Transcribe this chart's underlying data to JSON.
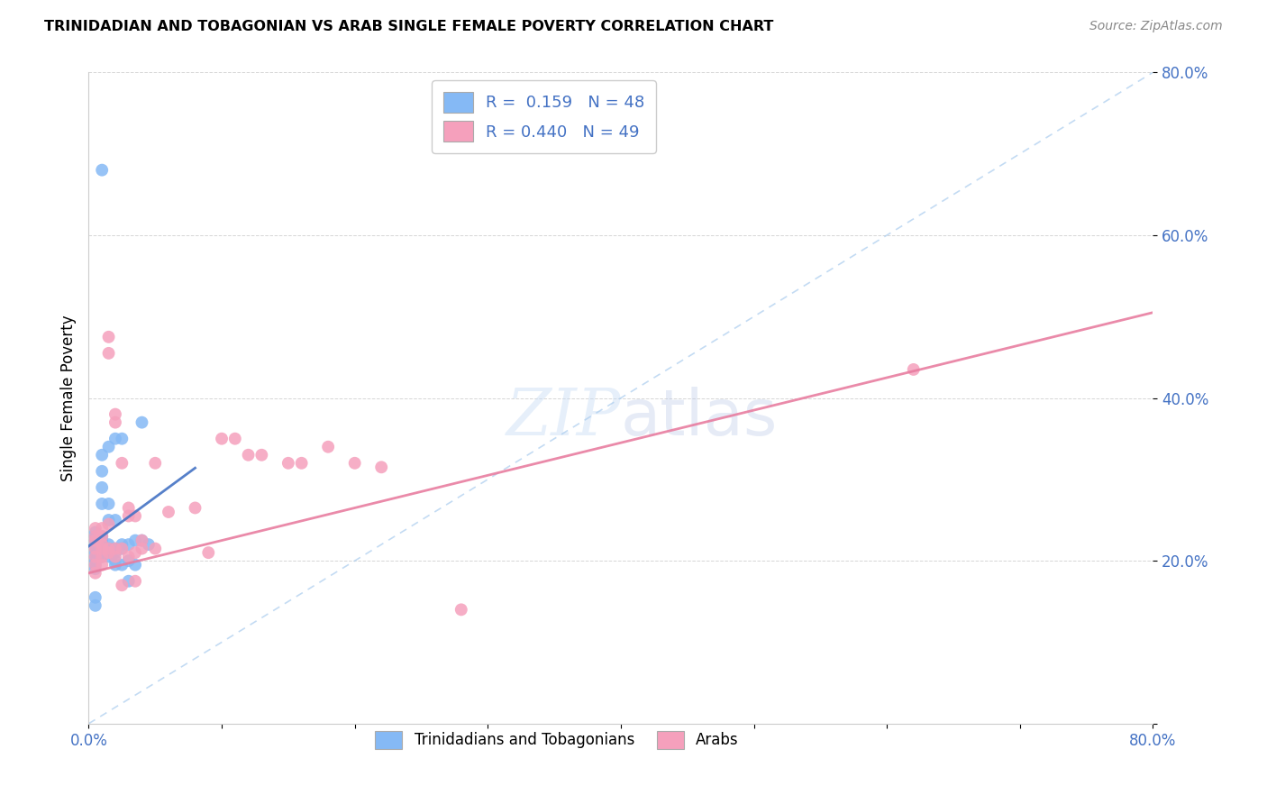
{
  "title": "TRINIDADIAN AND TOBAGONIAN VS ARAB SINGLE FEMALE POVERTY CORRELATION CHART",
  "source": "Source: ZipAtlas.com",
  "ylabel": "Single Female Poverty",
  "legend_label1": "Trinidadians and Tobagonians",
  "legend_label2": "Arabs",
  "r1": 0.159,
  "n1": 48,
  "r2": 0.44,
  "n2": 49,
  "color1": "#85b9f5",
  "color2": "#f5a0bc",
  "axis_color": "#4472c4",
  "xlim": [
    0.0,
    0.8
  ],
  "ylim": [
    0.0,
    0.8
  ],
  "background_color": "#ffffff",
  "scatter1_x": [
    0.005,
    0.005,
    0.005,
    0.005,
    0.005,
    0.005,
    0.005,
    0.005,
    0.005,
    0.005,
    0.01,
    0.01,
    0.01,
    0.01,
    0.01,
    0.01,
    0.01,
    0.01,
    0.01,
    0.01,
    0.015,
    0.015,
    0.015,
    0.015,
    0.015,
    0.015,
    0.015,
    0.02,
    0.02,
    0.02,
    0.02,
    0.02,
    0.02,
    0.025,
    0.025,
    0.025,
    0.025,
    0.03,
    0.03,
    0.03,
    0.035,
    0.035,
    0.04,
    0.04,
    0.045,
    0.01,
    0.005,
    0.005
  ],
  "scatter1_y": [
    0.215,
    0.22,
    0.225,
    0.23,
    0.235,
    0.21,
    0.205,
    0.2,
    0.195,
    0.19,
    0.22,
    0.225,
    0.23,
    0.215,
    0.21,
    0.205,
    0.27,
    0.29,
    0.31,
    0.33,
    0.22,
    0.215,
    0.21,
    0.205,
    0.25,
    0.27,
    0.34,
    0.215,
    0.21,
    0.2,
    0.195,
    0.25,
    0.35,
    0.22,
    0.215,
    0.195,
    0.35,
    0.22,
    0.2,
    0.175,
    0.225,
    0.195,
    0.37,
    0.225,
    0.22,
    0.68,
    0.155,
    0.145
  ],
  "scatter2_x": [
    0.005,
    0.005,
    0.005,
    0.005,
    0.005,
    0.005,
    0.005,
    0.01,
    0.01,
    0.01,
    0.01,
    0.01,
    0.01,
    0.015,
    0.015,
    0.015,
    0.015,
    0.015,
    0.02,
    0.02,
    0.02,
    0.02,
    0.025,
    0.025,
    0.025,
    0.03,
    0.03,
    0.03,
    0.035,
    0.035,
    0.035,
    0.04,
    0.04,
    0.05,
    0.05,
    0.06,
    0.08,
    0.09,
    0.1,
    0.11,
    0.12,
    0.13,
    0.15,
    0.16,
    0.18,
    0.2,
    0.22,
    0.28,
    0.62
  ],
  "scatter2_y": [
    0.225,
    0.215,
    0.205,
    0.195,
    0.185,
    0.23,
    0.24,
    0.22,
    0.215,
    0.205,
    0.195,
    0.23,
    0.24,
    0.215,
    0.21,
    0.245,
    0.455,
    0.475,
    0.37,
    0.38,
    0.215,
    0.205,
    0.32,
    0.215,
    0.17,
    0.265,
    0.255,
    0.205,
    0.255,
    0.21,
    0.175,
    0.225,
    0.215,
    0.32,
    0.215,
    0.26,
    0.265,
    0.21,
    0.35,
    0.35,
    0.33,
    0.33,
    0.32,
    0.32,
    0.34,
    0.32,
    0.315,
    0.14,
    0.435
  ],
  "trendline1_intercept": 0.218,
  "trendline1_slope": 1.2,
  "trendline2_intercept": 0.185,
  "trendline2_slope": 0.4,
  "diag_intercept": 0.0,
  "diag_slope": 1.0
}
